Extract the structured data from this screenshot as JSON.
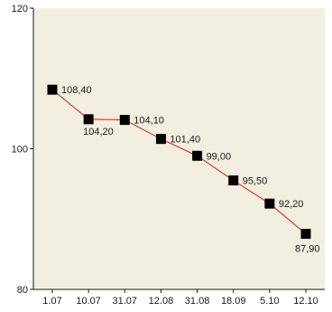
{
  "chart_data": {
    "type": "line",
    "title": "",
    "xlabel": "",
    "ylabel": "",
    "categories": [
      "1.07",
      "10.07",
      "31.07",
      "12.08",
      "31.08",
      "18.09",
      "5.10",
      "12.10"
    ],
    "series": [
      {
        "values": [
          108.4,
          104.2,
          104.1,
          101.4,
          99.0,
          95.5,
          92.2,
          87.9
        ],
        "labels": [
          "108,40",
          "104,20",
          "104,10",
          "101,40",
          "99,00",
          "95,50",
          "92,20",
          "87,90"
        ]
      }
    ],
    "ylim": [
      80,
      120
    ],
    "yticks": [
      "80",
      "100",
      "120"
    ],
    "grid": false,
    "legend": "none",
    "colors": {
      "background": "#f2efe0",
      "line": "#e8362a",
      "marker": "#000000",
      "axis": "#1a1a1a"
    }
  }
}
